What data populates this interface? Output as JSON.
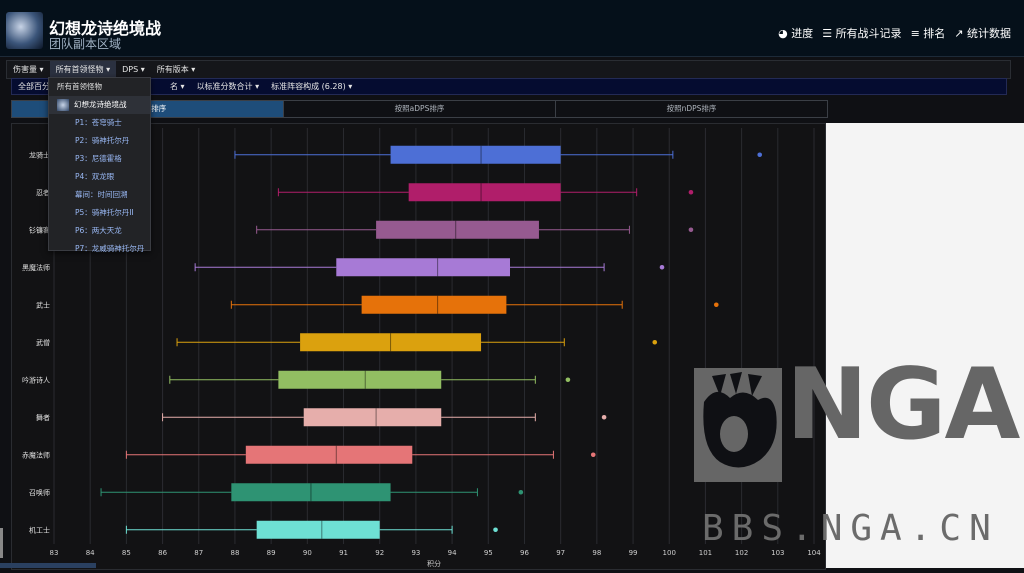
{
  "header": {
    "title": "幻想龙诗绝境战",
    "subtitle": "团队副本区域",
    "nav": [
      {
        "icon": "progress-icon",
        "glyph": "◕",
        "label": "进度"
      },
      {
        "icon": "list-icon",
        "glyph": "☰",
        "label": "所有战斗记录"
      },
      {
        "icon": "ranking-icon",
        "glyph": "≡",
        "label": "排名"
      },
      {
        "icon": "trend-icon",
        "glyph": "↗",
        "label": "统计数据"
      }
    ]
  },
  "filters": {
    "row1": [
      "伤害量 ▾",
      "所有首领怪物 ▾",
      "DPS ▾",
      "所有版本 ▾"
    ],
    "row2": [
      "全部百分",
      "名 ▾",
      "以标准分数合计 ▾",
      "标准阵容构成 (6.28) ▾"
    ]
  },
  "tabs": [
    "按DPS排序",
    "按照aDPS排序",
    "按照nDPS排序"
  ],
  "dropdown": {
    "header": "所有首领怪物",
    "selected": "幻想龙诗绝境战",
    "items": [
      "P1：苍穹骑士",
      "P2：骑神托尔丹",
      "P3：尼德霍格",
      "P4：双龙眼",
      "幕间：时间回溯",
      "P5：骑神托尔丹II",
      "P6：两大天龙",
      "P7：龙威骑神托尔丹"
    ]
  },
  "chart_data": {
    "type": "boxplot",
    "title": "",
    "xlabel": "积分",
    "ylabel": "",
    "xlim": [
      83,
      104
    ],
    "xticks": [
      "83",
      "84",
      "85",
      "86",
      "87",
      "88",
      "89",
      "90",
      "91",
      "92",
      "93",
      "94",
      "95",
      "96",
      "97",
      "98",
      "99",
      "100",
      "101",
      "102",
      "103",
      "104"
    ],
    "series": [
      {
        "name": "龙骑士",
        "color": "#4d6fd6",
        "min": 88.0,
        "q1": 92.3,
        "median": 94.8,
        "q3": 97.0,
        "max": 100.1,
        "outlier": 102.5
      },
      {
        "name": "忍者",
        "color": "#b01e6a",
        "min": 89.2,
        "q1": 92.8,
        "median": 94.8,
        "q3": 97.0,
        "max": 99.1,
        "outlier": 100.6
      },
      {
        "name": "钐镰客",
        "color": "#965a90",
        "min": 88.6,
        "q1": 91.9,
        "median": 94.1,
        "q3": 96.4,
        "max": 98.9,
        "outlier": 100.6
      },
      {
        "name": "黑魔法师",
        "color": "#a77ad6",
        "min": 86.9,
        "q1": 90.8,
        "median": 93.6,
        "q3": 95.6,
        "max": 98.2,
        "outlier": 99.8
      },
      {
        "name": "武士",
        "color": "#e6720a",
        "min": 87.9,
        "q1": 91.5,
        "median": 93.6,
        "q3": 95.5,
        "max": 98.7,
        "outlier": 101.3
      },
      {
        "name": "武僧",
        "color": "#dba10e",
        "min": 86.4,
        "q1": 89.8,
        "median": 92.3,
        "q3": 94.8,
        "max": 97.1,
        "outlier": 99.6
      },
      {
        "name": "吟游诗人",
        "color": "#92be62",
        "min": 86.2,
        "q1": 89.2,
        "median": 91.6,
        "q3": 93.7,
        "max": 96.3,
        "outlier": 97.2
      },
      {
        "name": "舞者",
        "color": "#e6aeab",
        "min": 86.0,
        "q1": 89.9,
        "median": 91.9,
        "q3": 93.7,
        "max": 96.3,
        "outlier": 98.2
      },
      {
        "name": "赤魔法师",
        "color": "#e57577",
        "min": 85.0,
        "q1": 88.3,
        "median": 90.8,
        "q3": 92.9,
        "max": 96.8,
        "outlier": 97.9
      },
      {
        "name": "召唤师",
        "color": "#2e9373",
        "min": 84.3,
        "q1": 87.9,
        "median": 90.1,
        "q3": 92.3,
        "max": 94.7,
        "outlier": 95.9
      },
      {
        "name": "机工士",
        "color": "#6ee0d4",
        "min": 85.0,
        "q1": 88.6,
        "median": 90.4,
        "q3": 92.0,
        "max": 94.0,
        "outlier": 95.2
      }
    ]
  },
  "watermark": {
    "logo": "NGA",
    "url": "BBS.NGA.CN"
  },
  "colors": {
    "header_bg": "#05101a",
    "tab_active": "#1e4d7a",
    "dropdown_link": "#9ab9f5"
  }
}
